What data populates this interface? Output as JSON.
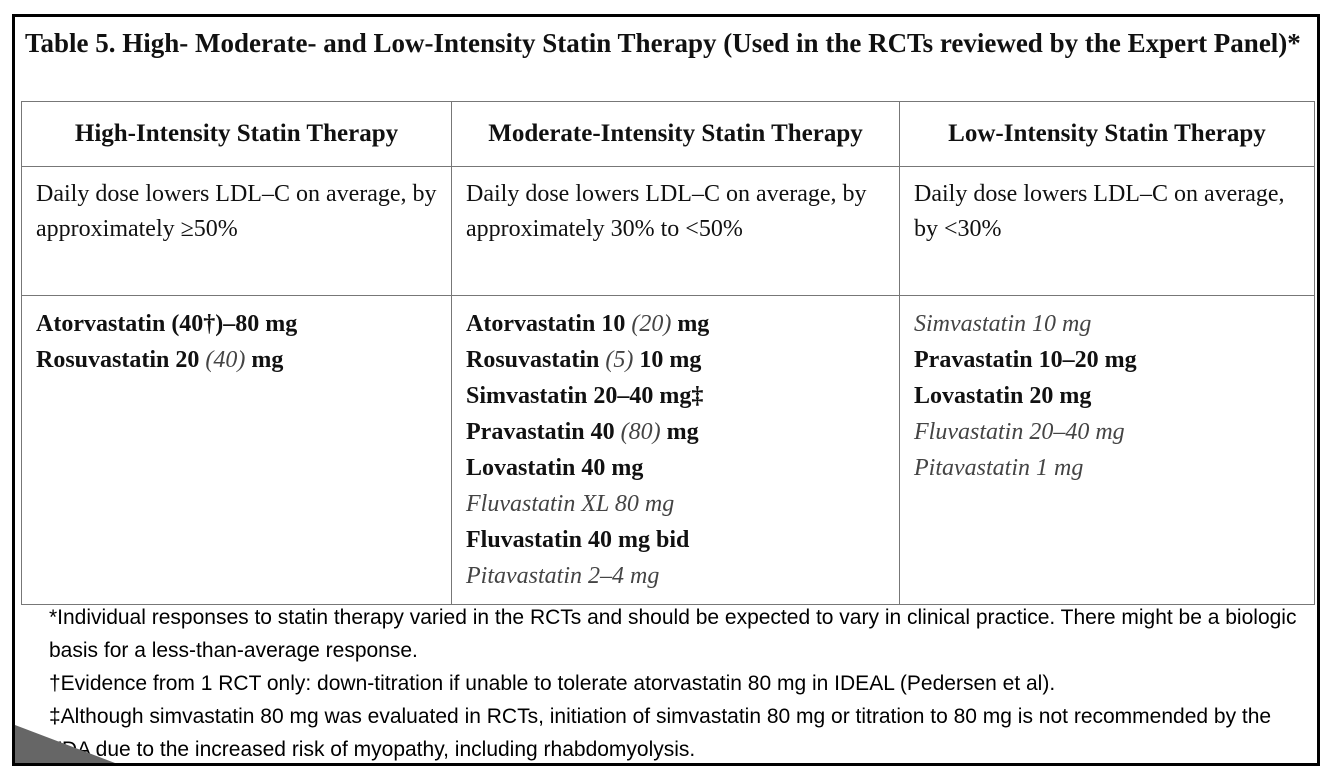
{
  "title": "Table 5. High- Moderate- and Low-Intensity Statin Therapy (Used in the RCTs reviewed by the Expert Panel)*",
  "columns": [
    {
      "header": "High-Intensity Statin Therapy",
      "description": "Daily dose lowers LDL–C on average, by approximately ≥50%",
      "drugs": [
        {
          "parts": [
            {
              "t": "Atorvastatin (40†)–80 mg",
              "s": "bold"
            }
          ]
        },
        {
          "parts": [
            {
              "t": "Rosuvastatin 20 ",
              "s": "bold"
            },
            {
              "t": "(40)",
              "s": "ital"
            },
            {
              "t": " mg",
              "s": "bold"
            }
          ]
        }
      ]
    },
    {
      "header": "Moderate-Intensity Statin Therapy",
      "description": "Daily dose lowers LDL–C on average, by approximately 30% to <50%",
      "drugs": [
        {
          "parts": [
            {
              "t": "Atorvastatin 10 ",
              "s": "bold"
            },
            {
              "t": "(20)",
              "s": "ital"
            },
            {
              "t": " mg",
              "s": "bold"
            }
          ]
        },
        {
          "parts": [
            {
              "t": "Rosuvastatin ",
              "s": "bold"
            },
            {
              "t": "(5)",
              "s": "ital"
            },
            {
              "t": " 10 mg",
              "s": "bold"
            }
          ]
        },
        {
          "parts": [
            {
              "t": "Simvastatin 20–40 mg‡",
              "s": "bold"
            }
          ]
        },
        {
          "parts": [
            {
              "t": "Pravastatin 40 ",
              "s": "bold"
            },
            {
              "t": "(80)",
              "s": "ital"
            },
            {
              "t": " mg",
              "s": "bold"
            }
          ]
        },
        {
          "parts": [
            {
              "t": "Lovastatin 40 mg",
              "s": "bold"
            }
          ]
        },
        {
          "parts": [
            {
              "t": "Fluvastatin XL 80 mg",
              "s": "ital"
            }
          ]
        },
        {
          "parts": [
            {
              "t": "Fluvastatin 40 mg bid",
              "s": "bold"
            }
          ]
        },
        {
          "parts": [
            {
              "t": "Pitavastatin 2–4 mg",
              "s": "ital"
            }
          ]
        }
      ]
    },
    {
      "header": "Low-Intensity Statin Therapy",
      "description": "Daily dose lowers LDL–C on average, by <30%",
      "drugs": [
        {
          "parts": [
            {
              "t": "Simvastatin 10 mg",
              "s": "ital"
            }
          ]
        },
        {
          "parts": [
            {
              "t": "Pravastatin 10–20 mg",
              "s": "bold"
            }
          ]
        },
        {
          "parts": [
            {
              "t": "Lovastatin 20 mg",
              "s": "bold"
            }
          ]
        },
        {
          "parts": [
            {
              "t": "Fluvastatin 20–40 mg",
              "s": "ital"
            }
          ]
        },
        {
          "parts": [
            {
              "t": "Pitavastatin 1 mg",
              "s": "ital"
            }
          ]
        }
      ]
    }
  ],
  "footnotes": [
    "*Individual responses to statin therapy varied in the RCTs and should be expected to vary in clinical practice. There might be a biologic basis for a less-than-average response.",
    "†Evidence from 1 RCT only: down-titration if unable to tolerate atorvastatin 80 mg in IDEAL (Pedersen et al).",
    "‡Although simvastatin 80 mg was evaluated in RCTs, initiation of simvastatin 80 mg or titration to 80 mg is not recommended by the FDA due to the increased risk of myopathy, including rhabdomyolysis."
  ]
}
